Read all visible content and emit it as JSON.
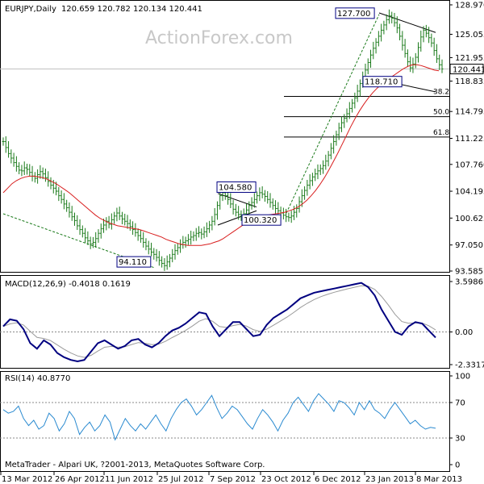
{
  "header": {
    "title": "EURJPY,Daily",
    "ohlc": "120.659 120.782 120.134 120.441"
  },
  "watermark": "ActionForex.com",
  "footer": "MetaTrader - Alpari UK, ?2001-2013, MetaQuotes Software Corp.",
  "colors": {
    "bars": "#1a7a1a",
    "ma": "#d81e1e",
    "macd": "#000080",
    "signal": "#808080",
    "rsi": "#2a8ad0",
    "fib": "#000000",
    "trend": "#1a7a1a"
  },
  "chart_data": [
    {
      "type": "ohlc",
      "name": "EURJPY Daily",
      "y_ticks": [
        "128.970",
        "125.055",
        "121.955",
        "118.835",
        "114.795",
        "111.225",
        "107.760",
        "104.195",
        "100.625",
        "97.050",
        "93.585"
      ],
      "current_price": "120.441",
      "x_ticks": [
        "13 Mar 2012",
        "26 Apr 2012",
        "11 Jun 2012",
        "25 Jul 2012",
        "7 Sep 2012",
        "23 Oct 2012",
        "6 Dec 2012",
        "23 Jan 2013",
        "8 Mar 2013"
      ],
      "labels": [
        "127.700",
        "118.710",
        "104.580",
        "100.320",
        "94.110"
      ],
      "fib_levels": [
        {
          "label": "38.2",
          "value": 116.8
        },
        {
          "label": "50.0",
          "value": 114.1
        },
        {
          "label": "61.8",
          "value": 111.4
        }
      ],
      "close": [
        110.8,
        110.0,
        109.2,
        108.6,
        108.0,
        107.5,
        107.0,
        106.9,
        107.3,
        107.1,
        106.7,
        106.2,
        105.9,
        106.4,
        106.8,
        106.5,
        106.0,
        105.5,
        105.0,
        104.6,
        104.2,
        103.6,
        103.1,
        102.5,
        102.0,
        101.4,
        100.8,
        100.3,
        99.6,
        99.1,
        98.6,
        98.0,
        97.6,
        97.2,
        97.4,
        97.9,
        98.6,
        99.2,
        99.7,
        100.2,
        99.8,
        100.4,
        100.9,
        101.3,
        100.9,
        100.5,
        100.2,
        99.9,
        99.5,
        99.1,
        98.7,
        98.3,
        97.9,
        97.4,
        96.9,
        96.5,
        96.1,
        95.8,
        95.4,
        95.0,
        94.6,
        94.3,
        94.8,
        95.3,
        95.8,
        96.3,
        96.7,
        97.1,
        97.4,
        97.6,
        97.8,
        98.1,
        98.3,
        98.6,
        98.7,
        98.5,
        98.8,
        99.2,
        99.7,
        100.2,
        101.1,
        102.3,
        103.6,
        104.0,
        103.6,
        103.1,
        102.5,
        101.8,
        101.4,
        101.1,
        100.8,
        101.2,
        101.7,
        102.3,
        102.7,
        103.1,
        103.6,
        104.0,
        103.8,
        103.5,
        103.1,
        102.7,
        102.3,
        101.9,
        101.6,
        101.3,
        101.0,
        100.8,
        100.7,
        100.9,
        101.4,
        101.9,
        102.8,
        103.6,
        104.3,
        105.0,
        105.6,
        106.1,
        106.5,
        106.9,
        107.2,
        107.6,
        108.2,
        109.0,
        109.9,
        110.8,
        111.7,
        112.6,
        113.3,
        113.9,
        114.5,
        115.2,
        115.9,
        116.6,
        117.5,
        118.5,
        119.4,
        120.3,
        121.3,
        122.3,
        123.2,
        124.0,
        124.8,
        125.6,
        126.3,
        127.0,
        127.5,
        127.2,
        126.6,
        125.9,
        124.8,
        123.6,
        122.5,
        121.4,
        120.6,
        121.1,
        122.0,
        123.3,
        124.7,
        125.6,
        125.2,
        124.6,
        123.9,
        122.9,
        121.8,
        121.0,
        120.44
      ],
      "ma": [
        104.0,
        104.6,
        105.2,
        105.6,
        105.9,
        106.1,
        106.2,
        106.2,
        106.1,
        106.0,
        105.8,
        105.5,
        105.2,
        104.8,
        104.4,
        104.0,
        103.5,
        103.0,
        102.5,
        102.0,
        101.5,
        101.0,
        100.6,
        100.3,
        100.0,
        99.8,
        99.6,
        99.5,
        99.4,
        99.3,
        99.2,
        99.1,
        98.9,
        98.7,
        98.5,
        98.3,
        98.1,
        97.8,
        97.6,
        97.4,
        97.2,
        97.1,
        97.0,
        97.0,
        97.0,
        97.0,
        97.1,
        97.2,
        97.4,
        97.6,
        97.9,
        98.3,
        98.7,
        99.1,
        99.5,
        99.9,
        100.2,
        100.5,
        100.7,
        100.9,
        101.0,
        101.1,
        101.2,
        101.3,
        101.4,
        101.6,
        101.8,
        102.1,
        102.5,
        103.0,
        103.6,
        104.3,
        105.1,
        106.0,
        107.0,
        108.1,
        109.2,
        110.4,
        111.6,
        112.8,
        113.9,
        114.9,
        115.8,
        116.6,
        117.3,
        117.9,
        118.4,
        118.9,
        119.3,
        119.7,
        120.1,
        120.5,
        120.8,
        121.0,
        121.0,
        120.9,
        120.7,
        120.5,
        120.3,
        120.2
      ],
      "series_names": [
        "price",
        "moving average"
      ]
    },
    {
      "type": "line",
      "title": "MACD(12,26,9) -0.4018 0.1619",
      "y_ticks": [
        "3.5986",
        "0.00",
        "-2.3317"
      ],
      "macd": [
        0.4,
        0.9,
        0.8,
        0.2,
        -0.8,
        -1.2,
        -0.6,
        -0.9,
        -1.5,
        -1.8,
        -2.0,
        -2.1,
        -2.0,
        -1.4,
        -0.8,
        -0.6,
        -0.9,
        -1.2,
        -1.0,
        -0.6,
        -0.5,
        -0.9,
        -1.1,
        -0.8,
        -0.3,
        0.1,
        0.3,
        0.6,
        1.0,
        1.4,
        1.3,
        0.4,
        -0.3,
        0.2,
        0.7,
        0.7,
        0.2,
        -0.3,
        -0.2,
        0.5,
        1.0,
        1.3,
        1.6,
        2.0,
        2.4,
        2.6,
        2.8,
        2.9,
        3.0,
        3.1,
        3.2,
        3.3,
        3.4,
        3.5,
        3.2,
        2.6,
        1.6,
        0.8,
        0.0,
        -0.2,
        0.4,
        0.7,
        0.6,
        0.1,
        -0.4
      ]
    },
    {
      "type": "line",
      "title": "RSI(14) 40.8770",
      "y_ticks": [
        "100",
        "70",
        "30",
        "0"
      ],
      "rsi": [
        62,
        58,
        60,
        66,
        52,
        44,
        50,
        40,
        44,
        58,
        52,
        38,
        46,
        60,
        52,
        34,
        42,
        48,
        38,
        44,
        56,
        48,
        28,
        40,
        52,
        44,
        38,
        46,
        40,
        48,
        56,
        46,
        38,
        52,
        62,
        70,
        74,
        66,
        56,
        62,
        70,
        78,
        64,
        52,
        58,
        66,
        62,
        54,
        46,
        40,
        52,
        62,
        56,
        48,
        38,
        50,
        58,
        70,
        76,
        68,
        60,
        72,
        80,
        74,
        68,
        60,
        72,
        70,
        64,
        56,
        70,
        62,
        72,
        62,
        58,
        52,
        62,
        70,
        62,
        54,
        46,
        50,
        44,
        40,
        42,
        41
      ]
    }
  ]
}
